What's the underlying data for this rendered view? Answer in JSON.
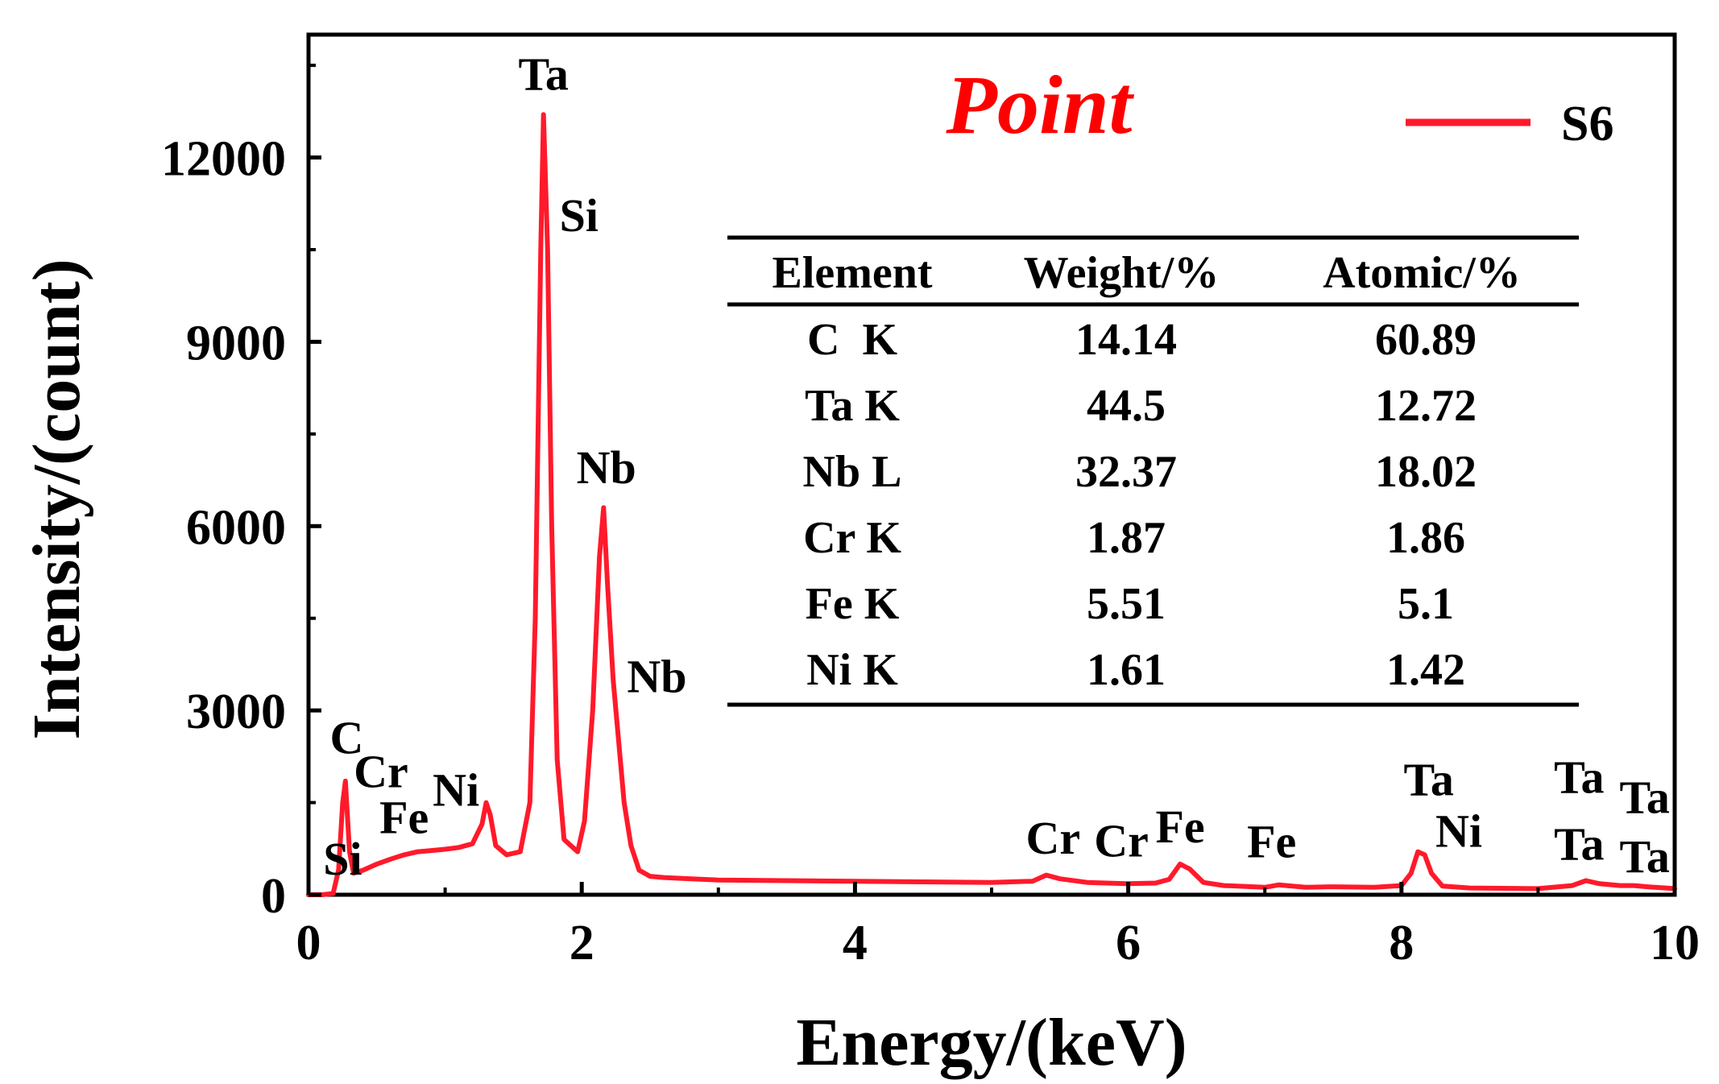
{
  "chart_data": {
    "type": "line",
    "title": "Point",
    "xlabel": "Energy/(keV)",
    "ylabel": "Intensity/(count)",
    "xlim": [
      0,
      10
    ],
    "ylim": [
      0,
      14000
    ],
    "xticks": [
      0,
      2,
      4,
      6,
      8,
      10
    ],
    "xtick_labels": [
      "0",
      "2",
      "4",
      "6",
      "8",
      "10"
    ],
    "yticks": [
      0,
      3000,
      6000,
      9000,
      12000
    ],
    "ytick_labels": [
      "0",
      "3000",
      "6000",
      "9000",
      "12000"
    ],
    "grid": false,
    "legend_position": "top-right",
    "colors": {
      "series": "#ff1a2b",
      "title": "#ff0000",
      "axis": "#000000"
    },
    "series": [
      {
        "name": "S6",
        "x": [
          0.0,
          0.1,
          0.18,
          0.22,
          0.25,
          0.27,
          0.3,
          0.33,
          0.4,
          0.5,
          0.6,
          0.7,
          0.8,
          0.9,
          1.0,
          1.1,
          1.2,
          1.27,
          1.3,
          1.33,
          1.37,
          1.45,
          1.55,
          1.62,
          1.66,
          1.7,
          1.72,
          1.75,
          1.78,
          1.82,
          1.87,
          1.92,
          1.97,
          2.02,
          2.08,
          2.13,
          2.16,
          2.19,
          2.23,
          2.27,
          2.31,
          2.36,
          2.42,
          2.5,
          2.6,
          2.8,
          3.0,
          3.5,
          4.0,
          4.5,
          5.0,
          5.3,
          5.4,
          5.5,
          5.7,
          6.0,
          6.2,
          6.3,
          6.38,
          6.45,
          6.55,
          6.7,
          7.0,
          7.1,
          7.3,
          7.5,
          7.8,
          8.0,
          8.07,
          8.12,
          8.17,
          8.22,
          8.3,
          8.5,
          9.0,
          9.25,
          9.35,
          9.45,
          9.6,
          9.7,
          9.8,
          10.0
        ],
        "values": [
          0,
          0,
          20,
          400,
          1500,
          1850,
          700,
          350,
          400,
          500,
          580,
          650,
          700,
          720,
          740,
          770,
          830,
          1150,
          1500,
          1300,
          800,
          650,
          700,
          1500,
          4500,
          10500,
          12700,
          10500,
          6000,
          2200,
          900,
          800,
          700,
          1200,
          3000,
          5500,
          6300,
          5000,
          3500,
          2500,
          1500,
          800,
          400,
          300,
          280,
          260,
          240,
          230,
          220,
          210,
          200,
          220,
          320,
          260,
          200,
          180,
          190,
          250,
          500,
          420,
          200,
          150,
          120,
          160,
          120,
          130,
          120,
          150,
          350,
          700,
          650,
          350,
          140,
          110,
          100,
          150,
          230,
          180,
          150,
          150,
          130,
          100
        ]
      }
    ],
    "annotations": [
      {
        "text": "Ta",
        "x": 1.72,
        "y": 13100
      },
      {
        "text": "Si",
        "x": 1.98,
        "y": 10800
      },
      {
        "text": "Nb",
        "x": 2.18,
        "y": 6700
      },
      {
        "text": "Nb",
        "x": 2.55,
        "y": 3300
      },
      {
        "text": "C",
        "x": 0.28,
        "y": 2300
      },
      {
        "text": "Cr",
        "x": 0.53,
        "y": 1750
      },
      {
        "text": "Ni",
        "x": 1.08,
        "y": 1450
      },
      {
        "text": "Fe",
        "x": 0.7,
        "y": 1000
      },
      {
        "text": "Si",
        "x": 0.25,
        "y": 330
      },
      {
        "text": "Cr",
        "x": 5.45,
        "y": 670
      },
      {
        "text": "Cr",
        "x": 5.95,
        "y": 620
      },
      {
        "text": "Fe",
        "x": 6.38,
        "y": 850
      },
      {
        "text": "Fe",
        "x": 7.05,
        "y": 610
      },
      {
        "text": "Ta",
        "x": 8.2,
        "y": 1620
      },
      {
        "text": "Ni",
        "x": 8.42,
        "y": 780
      },
      {
        "text": "Ta",
        "x": 9.3,
        "y": 1660
      },
      {
        "text": "Ta",
        "x": 9.78,
        "y": 1330
      },
      {
        "text": "Ta",
        "x": 9.3,
        "y": 570
      },
      {
        "text": "Ta",
        "x": 9.78,
        "y": 370
      }
    ],
    "table": {
      "headers": [
        "Element",
        "Weight/%",
        "Atomic/%"
      ],
      "rows": [
        [
          "C  K",
          "14.14",
          "60.89"
        ],
        [
          "Ta K",
          "44.5",
          "12.72"
        ],
        [
          "Nb L",
          "32.37",
          "18.02"
        ],
        [
          "Cr K",
          "1.87",
          "1.86"
        ],
        [
          "Fe K",
          "5.51",
          "5.1"
        ],
        [
          "Ni K",
          "1.61",
          "1.42"
        ]
      ]
    }
  }
}
